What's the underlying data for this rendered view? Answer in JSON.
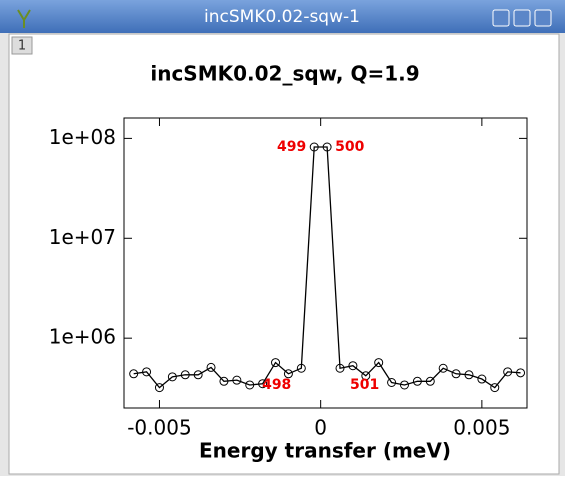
{
  "window": {
    "title": "incSMK0.02-sqw-1",
    "tab": "1"
  },
  "chart_data": {
    "type": "line",
    "title": "incSMK0.02_sqw, Q=1.9",
    "x_label": "Energy transfer (meV)",
    "x": [
      -0.0058,
      -0.0054,
      -0.005,
      -0.0046,
      -0.0042,
      -0.0038,
      -0.0034,
      -0.003,
      -0.0026,
      -0.0022,
      -0.0018,
      -0.0014,
      -0.001,
      -0.0006,
      -0.0002,
      0.0002,
      0.0006,
      0.001,
      0.0014,
      0.0018,
      0.0022,
      0.0026,
      0.003,
      0.0034,
      0.0038,
      0.0042,
      0.0046,
      0.005,
      0.0054,
      0.0058,
      0.0062
    ],
    "series": [
      {
        "name": "incSMK0.02_sqw",
        "color": "#000000",
        "values": [
          440000,
          460000,
          320000,
          410000,
          430000,
          430000,
          510000,
          370000,
          380000,
          340000,
          350000,
          570000,
          440000,
          500000,
          82000000,
          82000000,
          500000,
          530000,
          420000,
          570000,
          360000,
          340000,
          370000,
          370000,
          500000,
          440000,
          430000,
          390000,
          320000,
          460000,
          450000
        ]
      }
    ],
    "annotations": [
      {
        "text": "498",
        "x": -0.0006
      },
      {
        "text": "499",
        "x": -0.0002
      },
      {
        "text": "500",
        "x": 0.0002
      },
      {
        "text": "501",
        "x": 0.0006
      }
    ],
    "annotation_color": "#ee0000",
    "xlim": [
      -0.0061,
      0.0064
    ],
    "xticks": [
      -0.005,
      0,
      0.005
    ],
    "ylim": [
      200000,
      160000000
    ],
    "log_y": true,
    "yticks": [
      {
        "value": 1000000,
        "label": "1e+06"
      },
      {
        "value": 10000000,
        "label": "1e+07"
      },
      {
        "value": 100000000,
        "label": "1e+08"
      }
    ]
  }
}
